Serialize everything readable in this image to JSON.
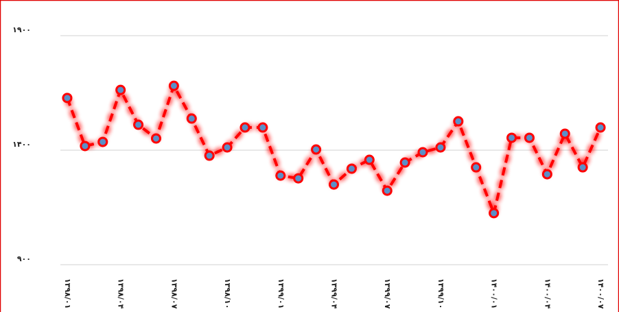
{
  "chart_data": {
    "type": "line",
    "categories": [
      "۱۳۹۸/۰۱",
      null,
      null,
      "۱۳۹۸/۰۴",
      null,
      null,
      "۱۳۹۸/۰۷",
      null,
      null,
      "۱۳۹۸/۱۰",
      null,
      null,
      "۱۳۹۹/۰۱",
      null,
      null,
      "۱۳۹۹/۰۴",
      null,
      null,
      "۱۳۹۹/۰۷",
      null,
      null,
      "۱۳۹۹/۱۰",
      null,
      null,
      "۱۴۰۰/۰۱",
      null,
      null,
      "۱۴۰۰/۰۴",
      null,
      null,
      "۱۴۰۰/۰۷"
    ],
    "series": [
      {
        "color": "#ff0000",
        "marker_color": "#5b8fc7",
        "values": [
          1628,
          1418,
          1436,
          1663,
          1511,
          1451,
          1681,
          1538,
          1376,
          1412,
          1499,
          1499,
          1289,
          1277,
          1403,
          1250,
          1319,
          1358,
          1223,
          1346,
          1391,
          1412,
          1526,
          1325,
          1125,
          1454,
          1454,
          1295,
          1472,
          1325,
          1499
        ]
      }
    ],
    "ylim": [
      900,
      1900
    ],
    "yticks": [
      {
        "value": 900,
        "label": "۹۰۰"
      },
      {
        "value": 1400,
        "label": "۱۴۰۰"
      },
      {
        "value": 1900,
        "label": "۱۹۰۰"
      }
    ],
    "grid": true
  }
}
